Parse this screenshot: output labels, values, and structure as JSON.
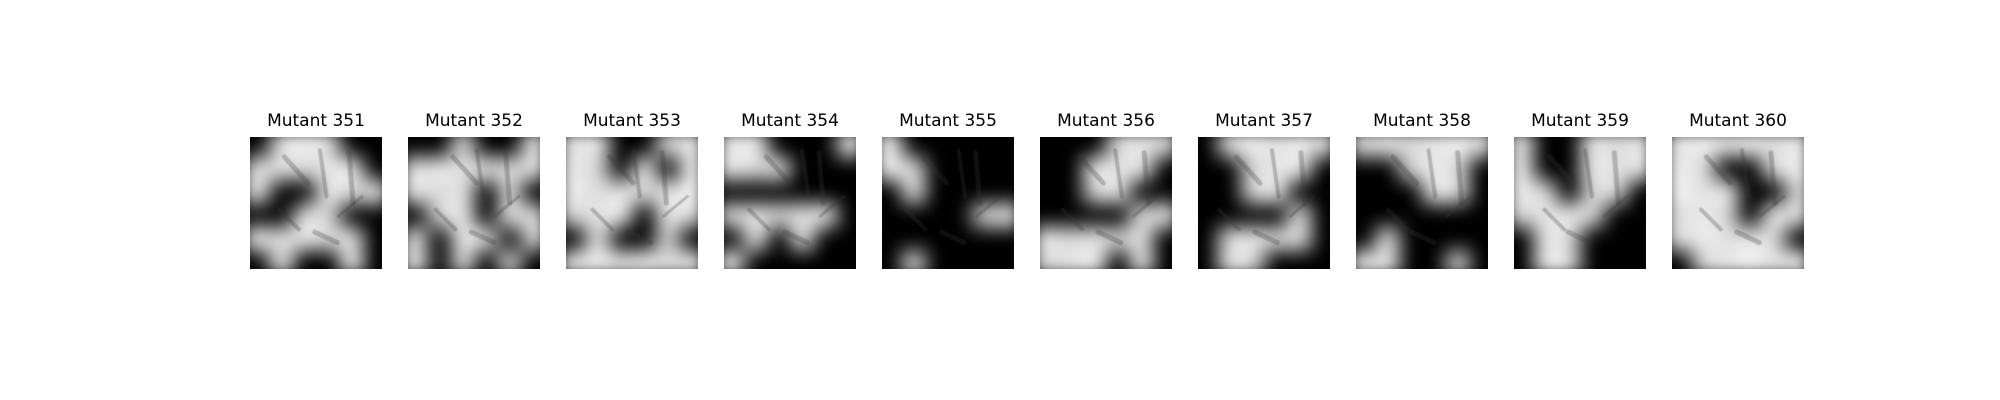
{
  "panels": [
    {
      "title": "Mutant 351",
      "mask": [
        [
          0,
          1,
          1,
          1,
          0,
          0
        ],
        [
          1,
          1,
          1,
          1,
          1,
          0
        ],
        [
          1,
          0,
          0,
          1,
          1,
          1
        ],
        [
          0,
          0,
          1,
          1,
          0,
          0
        ],
        [
          1,
          1,
          1,
          1,
          1,
          0
        ],
        [
          0,
          1,
          0,
          0,
          1,
          0
        ]
      ]
    },
    {
      "title": "Mutant 352",
      "mask": [
        [
          0,
          0,
          1,
          0,
          0,
          1
        ],
        [
          1,
          1,
          1,
          1,
          1,
          1
        ],
        [
          1,
          1,
          1,
          0,
          1,
          0
        ],
        [
          0,
          1,
          1,
          0,
          1,
          1
        ],
        [
          1,
          0,
          1,
          1,
          0,
          1
        ],
        [
          1,
          0,
          1,
          0,
          1,
          0
        ]
      ]
    },
    {
      "title": "Mutant 353",
      "mask": [
        [
          1,
          1,
          0,
          0,
          1,
          1
        ],
        [
          1,
          1,
          0,
          1,
          0,
          1
        ],
        [
          1,
          1,
          1,
          1,
          1,
          1
        ],
        [
          1,
          1,
          1,
          0,
          1,
          1
        ],
        [
          0,
          1,
          0,
          0,
          1,
          0
        ],
        [
          1,
          1,
          1,
          1,
          1,
          1
        ]
      ]
    },
    {
      "title": "Mutant 354",
      "mask": [
        [
          1,
          1,
          0,
          0,
          0,
          1
        ],
        [
          1,
          1,
          1,
          0,
          0,
          0
        ],
        [
          0,
          0,
          0,
          0,
          0,
          0
        ],
        [
          1,
          1,
          1,
          1,
          1,
          0
        ],
        [
          0,
          1,
          0,
          1,
          0,
          0
        ],
        [
          1,
          0,
          0,
          0,
          0,
          0
        ]
      ]
    },
    {
      "title": "Mutant 355",
      "mask": [
        [
          1,
          0,
          0,
          0,
          0,
          0
        ],
        [
          1,
          1,
          0,
          0,
          0,
          0
        ],
        [
          0,
          1,
          0,
          0,
          0,
          0
        ],
        [
          0,
          0,
          0,
          0,
          1,
          1
        ],
        [
          0,
          0,
          0,
          0,
          0,
          0
        ],
        [
          0,
          1,
          0,
          0,
          0,
          0
        ]
      ]
    },
    {
      "title": "Mutant 356",
      "mask": [
        [
          0,
          0,
          0,
          1,
          1,
          1
        ],
        [
          0,
          0,
          1,
          1,
          1,
          0
        ],
        [
          0,
          0,
          1,
          1,
          0,
          0
        ],
        [
          0,
          0,
          0,
          0,
          1,
          1
        ],
        [
          1,
          1,
          1,
          1,
          1,
          0
        ],
        [
          1,
          1,
          1,
          0,
          1,
          0
        ]
      ]
    },
    {
      "title": "Mutant 357",
      "mask": [
        [
          0,
          1,
          1,
          1,
          1,
          1
        ],
        [
          0,
          0,
          1,
          1,
          1,
          0
        ],
        [
          0,
          0,
          1,
          1,
          0,
          0
        ],
        [
          0,
          0,
          0,
          0,
          1,
          0
        ],
        [
          0,
          1,
          1,
          1,
          1,
          0
        ],
        [
          0,
          1,
          1,
          0,
          0,
          0
        ]
      ]
    },
    {
      "title": "Mutant 358",
      "mask": [
        [
          1,
          1,
          1,
          1,
          1,
          1
        ],
        [
          0,
          0,
          1,
          1,
          1,
          0
        ],
        [
          0,
          0,
          0,
          1,
          1,
          0
        ],
        [
          0,
          0,
          0,
          0,
          0,
          0
        ],
        [
          0,
          1,
          0,
          0,
          0,
          0
        ],
        [
          1,
          1,
          0,
          0,
          1,
          0
        ]
      ]
    },
    {
      "title": "Mutant 359",
      "mask": [
        [
          1,
          0,
          0,
          1,
          1,
          1
        ],
        [
          1,
          0,
          0,
          1,
          1,
          1
        ],
        [
          1,
          1,
          0,
          1,
          1,
          0
        ],
        [
          1,
          1,
          1,
          1,
          0,
          0
        ],
        [
          0,
          1,
          1,
          0,
          0,
          0
        ],
        [
          0,
          1,
          1,
          0,
          0,
          0
        ]
      ]
    },
    {
      "title": "Mutant 360",
      "mask": [
        [
          1,
          1,
          1,
          1,
          1,
          1
        ],
        [
          1,
          1,
          0,
          0,
          1,
          1
        ],
        [
          1,
          1,
          1,
          0,
          0,
          1
        ],
        [
          1,
          1,
          1,
          0,
          1,
          1
        ],
        [
          1,
          1,
          1,
          1,
          1,
          0
        ],
        [
          0,
          1,
          1,
          1,
          1,
          1
        ]
      ]
    }
  ]
}
